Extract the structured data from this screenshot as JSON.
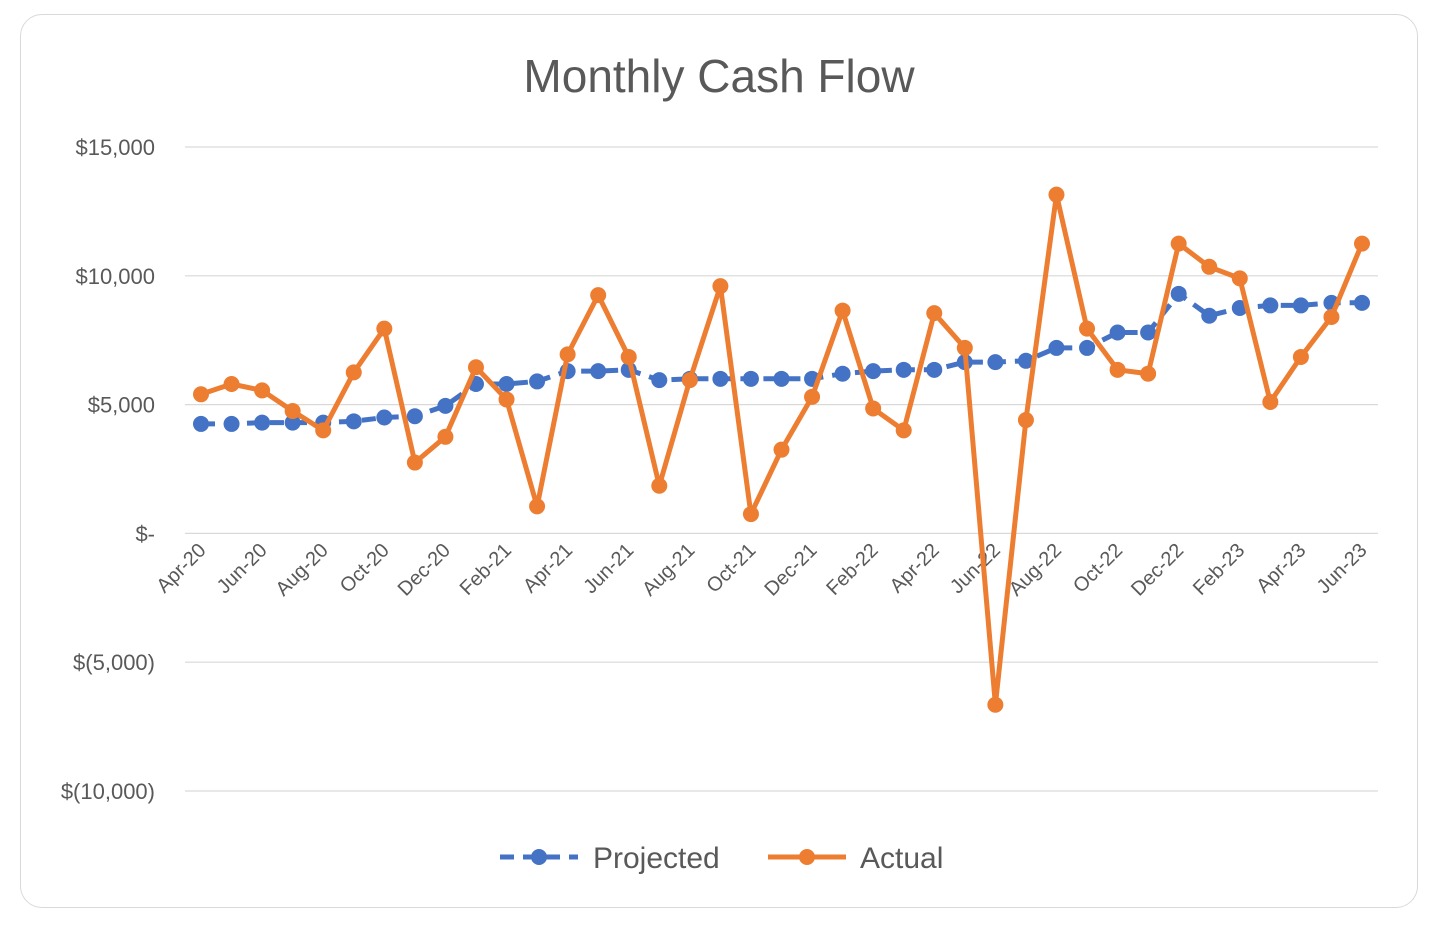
{
  "chart_data": {
    "type": "line",
    "title": "Monthly Cash Flow",
    "xlabel": "",
    "ylabel": "",
    "ylim": [
      -10000,
      15000
    ],
    "yticks": [
      {
        "value": 15000,
        "label": "$15,000"
      },
      {
        "value": 10000,
        "label": "$10,000"
      },
      {
        "value": 5000,
        "label": "$5,000"
      },
      {
        "value": 0,
        "label": "$-"
      },
      {
        "value": -5000,
        "label": "$(5,000)"
      },
      {
        "value": -10000,
        "label": "$(10,000)"
      }
    ],
    "grid": true,
    "legend_position": "bottom",
    "categories": [
      "Apr-20",
      "May-20",
      "Jun-20",
      "Jul-20",
      "Aug-20",
      "Sep-20",
      "Oct-20",
      "Nov-20",
      "Dec-20",
      "Jan-21",
      "Feb-21",
      "Mar-21",
      "Apr-21",
      "May-21",
      "Jun-21",
      "Jul-21",
      "Aug-21",
      "Sep-21",
      "Oct-21",
      "Nov-21",
      "Dec-21",
      "Jan-22",
      "Feb-22",
      "Mar-22",
      "Apr-22",
      "May-22",
      "Jun-22",
      "Jul-22",
      "Aug-22",
      "Sep-22",
      "Oct-22",
      "Nov-22",
      "Dec-22",
      "Jan-23",
      "Feb-23",
      "Mar-23",
      "Apr-23",
      "May-23",
      "Jun-23"
    ],
    "x_tick_labels": [
      "Apr-20",
      "Jun-20",
      "Aug-20",
      "Oct-20",
      "Dec-20",
      "Feb-21",
      "Apr-21",
      "Jun-21",
      "Aug-21",
      "Oct-21",
      "Dec-21",
      "Feb-22",
      "Apr-22",
      "Jun-22",
      "Aug-22",
      "Oct-22",
      "Dec-22",
      "Feb-23",
      "Apr-23",
      "Jun-23"
    ],
    "series": [
      {
        "name": "Projected",
        "color": "#4472c4",
        "style": "dashed",
        "values": [
          4250,
          4250,
          4300,
          4300,
          4300,
          4350,
          4500,
          4550,
          4950,
          5800,
          5800,
          5900,
          6300,
          6300,
          6350,
          5950,
          6000,
          6000,
          6000,
          6000,
          6000,
          6200,
          6300,
          6350,
          6350,
          6650,
          6650,
          6700,
          7200,
          7200,
          7800,
          7800,
          9300,
          8450,
          8750,
          8850,
          8850,
          8950,
          8950
        ]
      },
      {
        "name": "Actual",
        "color": "#ed7d31",
        "style": "solid",
        "values": [
          5400,
          5800,
          5550,
          4750,
          4000,
          6250,
          7950,
          2750,
          3750,
          6450,
          5200,
          1050,
          6950,
          9250,
          6850,
          1850,
          5950,
          9600,
          750,
          3250,
          5300,
          8650,
          4850,
          4000,
          8550,
          7200,
          -6650,
          4400,
          13150,
          7950,
          6350,
          6200,
          11250,
          10350,
          9900,
          5100,
          6850,
          8400,
          11250
        ]
      }
    ]
  }
}
